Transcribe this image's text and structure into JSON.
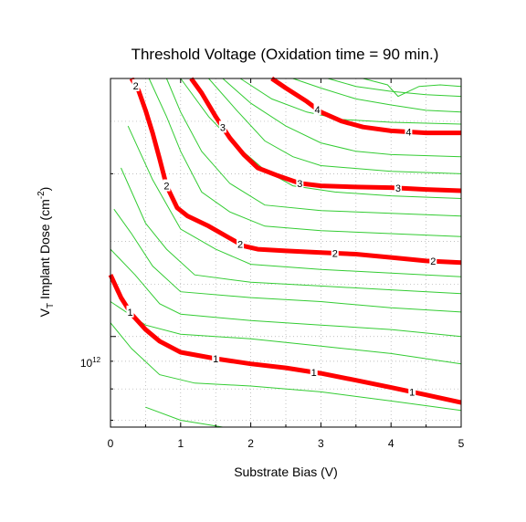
{
  "chart_data": {
    "type": "line",
    "subtype": "contour",
    "title": "Threshold Voltage (Oxidation time = 90 min.)",
    "xlabel": "Substrate Bias (V)",
    "ylabel": {
      "prefix": "V",
      "subscript": "T",
      "middle": " Implant Dose (cm",
      "superscript": "-2",
      "suffix": ")"
    },
    "xlim": [
      0,
      5
    ],
    "x_ticks": [
      "0",
      "1",
      "2",
      "3",
      "4",
      "5"
    ],
    "y_scale": "log",
    "ylim": [
      680000000000.0,
      3000000000000.0
    ],
    "y_tick_label": {
      "base": "10",
      "exponent": "12",
      "value": 1000000000000.0
    },
    "grid": true,
    "colors": {
      "major_contour": "#ff0000",
      "minor_contour": "#33cc33",
      "grid": "#aaaaaa",
      "frame": "#000000"
    },
    "major_contours": [
      {
        "level_label": "1",
        "points": [
          [
            0,
            1300000000000.0
          ],
          [
            0.15,
            1180000000000.0
          ],
          [
            0.3,
            1100000000000.0
          ],
          [
            0.5,
            1030000000000.0
          ],
          [
            0.7,
            980000000000.0
          ],
          [
            1.0,
            935000000000.0
          ],
          [
            1.5,
            910000000000.0
          ],
          [
            2.0,
            890000000000.0
          ],
          [
            2.5,
            875000000000.0
          ],
          [
            3.0,
            855000000000.0
          ],
          [
            3.5,
            830000000000.0
          ],
          [
            4.0,
            805000000000.0
          ],
          [
            4.5,
            780000000000.0
          ],
          [
            5.0,
            755000000000.0
          ]
        ],
        "label_x": [
          0.28,
          1.5,
          2.9,
          4.3
        ]
      },
      {
        "level_label": "2",
        "points": [
          [
            0.3,
            3000000000000.0
          ],
          [
            0.4,
            2850000000000.0
          ],
          [
            0.5,
            2620000000000.0
          ],
          [
            0.6,
            2380000000000.0
          ],
          [
            0.7,
            2130000000000.0
          ],
          [
            0.8,
            1900000000000.0
          ],
          [
            0.95,
            1730000000000.0
          ],
          [
            1.1,
            1670000000000.0
          ],
          [
            1.4,
            1600000000000.0
          ],
          [
            1.7,
            1520000000000.0
          ],
          [
            1.9,
            1470000000000.0
          ],
          [
            2.1,
            1450000000000.0
          ],
          [
            2.5,
            1440000000000.0
          ],
          [
            3.0,
            1430000000000.0
          ],
          [
            3.5,
            1420000000000.0
          ],
          [
            4.0,
            1400000000000.0
          ],
          [
            4.5,
            1380000000000.0
          ],
          [
            5.0,
            1370000000000.0
          ]
        ],
        "label_x": [
          0.36,
          0.8,
          1.85,
          3.2,
          4.6
        ]
      },
      {
        "level_label": "3",
        "points": [
          [
            1.15,
            3000000000000.0
          ],
          [
            1.3,
            2820000000000.0
          ],
          [
            1.5,
            2550000000000.0
          ],
          [
            1.7,
            2330000000000.0
          ],
          [
            1.9,
            2170000000000.0
          ],
          [
            2.1,
            2050000000000.0
          ],
          [
            2.4,
            1980000000000.0
          ],
          [
            2.7,
            1920000000000.0
          ],
          [
            3.0,
            1900000000000.0
          ],
          [
            3.5,
            1890000000000.0
          ],
          [
            4.0,
            1885000000000.0
          ],
          [
            4.5,
            1870000000000.0
          ],
          [
            5.0,
            1860000000000.0
          ]
        ],
        "label_x": [
          1.6,
          2.7,
          4.1
        ]
      },
      {
        "level_label": "4",
        "points": [
          [
            2.3,
            3000000000000.0
          ],
          [
            2.5,
            2880000000000.0
          ],
          [
            2.8,
            2720000000000.0
          ],
          [
            3.0,
            2600000000000.0
          ],
          [
            3.3,
            2500000000000.0
          ],
          [
            3.6,
            2440000000000.0
          ],
          [
            4.0,
            2400000000000.0
          ],
          [
            4.5,
            2380000000000.0
          ],
          [
            5.0,
            2380000000000.0
          ]
        ],
        "label_x": [
          2.95,
          4.25
        ]
      }
    ],
    "minor_contours": [
      {
        "points": [
          [
            0.5,
            740000000000.0
          ],
          [
            1.0,
            700000000000.0
          ],
          [
            1.6,
            680000000000.0
          ]
        ]
      },
      {
        "points": [
          [
            0,
            1060000000000.0
          ],
          [
            0.3,
            950000000000.0
          ],
          [
            0.7,
            850000000000.0
          ],
          [
            1.2,
            820000000000.0
          ],
          [
            2.0,
            810000000000.0
          ],
          [
            3.0,
            790000000000.0
          ],
          [
            4.0,
            760000000000.0
          ],
          [
            5.0,
            730000000000.0
          ]
        ]
      },
      {
        "points": [
          [
            0,
            1160000000000.0
          ],
          [
            0.5,
            1050000000000.0
          ],
          [
            1.0,
            1010000000000.0
          ],
          [
            2.0,
            990000000000.0
          ],
          [
            3.0,
            960000000000.0
          ],
          [
            4.0,
            930000000000.0
          ],
          [
            5.0,
            890000000000.0
          ]
        ]
      },
      {
        "points": [
          [
            0,
            1450000000000.0
          ],
          [
            0.35,
            1300000000000.0
          ],
          [
            0.7,
            1150000000000.0
          ],
          [
            1.0,
            1100000000000.0
          ],
          [
            2.0,
            1070000000000.0
          ],
          [
            3.0,
            1050000000000.0
          ],
          [
            4.0,
            1030000000000.0
          ],
          [
            5.0,
            1000000000000.0
          ]
        ]
      },
      {
        "points": [
          [
            0.05,
            1720000000000.0
          ],
          [
            0.3,
            1550000000000.0
          ],
          [
            0.6,
            1350000000000.0
          ],
          [
            1.0,
            1210000000000.0
          ],
          [
            2.0,
            1180000000000.0
          ],
          [
            3.0,
            1160000000000.0
          ],
          [
            4.0,
            1130000000000.0
          ],
          [
            5.0,
            1110000000000.0
          ]
        ]
      },
      {
        "points": [
          [
            0.15,
            2050000000000.0
          ],
          [
            0.5,
            1620000000000.0
          ],
          [
            0.8,
            1450000000000.0
          ],
          [
            1.2,
            1300000000000.0
          ],
          [
            2.0,
            1260000000000.0
          ],
          [
            3.0,
            1240000000000.0
          ],
          [
            4.0,
            1220000000000.0
          ],
          [
            5.0,
            1200000000000.0
          ]
        ]
      },
      {
        "points": [
          [
            0.25,
            2450000000000.0
          ],
          [
            0.6,
            1950000000000.0
          ],
          [
            1.0,
            1580000000000.0
          ],
          [
            1.5,
            1450000000000.0
          ],
          [
            2.0,
            1360000000000.0
          ],
          [
            3.0,
            1330000000000.0
          ],
          [
            4.0,
            1310000000000.0
          ],
          [
            5.0,
            1290000000000.0
          ]
        ]
      },
      {
        "points": [
          [
            0.55,
            3000000000000.0
          ],
          [
            0.8,
            2550000000000.0
          ],
          [
            1.0,
            2200000000000.0
          ],
          [
            1.3,
            1850000000000.0
          ],
          [
            1.7,
            1700000000000.0
          ],
          [
            2.2,
            1600000000000.0
          ],
          [
            3.0,
            1570000000000.0
          ],
          [
            4.0,
            1550000000000.0
          ],
          [
            5.0,
            1530000000000.0
          ]
        ]
      },
      {
        "points": [
          [
            0.8,
            3000000000000.0
          ],
          [
            1.0,
            2600000000000.0
          ],
          [
            1.3,
            2200000000000.0
          ],
          [
            1.7,
            1920000000000.0
          ],
          [
            2.2,
            1750000000000.0
          ],
          [
            3.0,
            1710000000000.0
          ],
          [
            4.0,
            1690000000000.0
          ],
          [
            5.0,
            1670000000000.0
          ]
        ]
      },
      {
        "points": [
          [
            1.0,
            3000000000000.0
          ],
          [
            1.4,
            2550000000000.0
          ],
          [
            1.8,
            2250000000000.0
          ],
          [
            2.2,
            2030000000000.0
          ],
          [
            2.6,
            1900000000000.0
          ],
          [
            3.2,
            1850000000000.0
          ],
          [
            4.0,
            1820000000000.0
          ],
          [
            5.0,
            1800000000000.0
          ]
        ]
      },
      {
        "points": [
          [
            1.4,
            3000000000000.0
          ],
          [
            1.8,
            2620000000000.0
          ],
          [
            2.2,
            2300000000000.0
          ],
          [
            2.6,
            2150000000000.0
          ],
          [
            3.0,
            2070000000000.0
          ],
          [
            4.0,
            2020000000000.0
          ],
          [
            5.0,
            2000000000000.0
          ]
        ]
      },
      {
        "points": [
          [
            1.6,
            3000000000000.0
          ],
          [
            2.0,
            2700000000000.0
          ],
          [
            2.5,
            2450000000000.0
          ],
          [
            3.0,
            2280000000000.0
          ],
          [
            3.5,
            2200000000000.0
          ],
          [
            4.0,
            2170000000000.0
          ],
          [
            5.0,
            2150000000000.0
          ]
        ]
      },
      {
        "points": [
          [
            1.85,
            3000000000000.0
          ],
          [
            2.3,
            2750000000000.0
          ],
          [
            2.8,
            2600000000000.0
          ],
          [
            3.3,
            2520000000000.0
          ],
          [
            4.0,
            2490000000000.0
          ],
          [
            5.0,
            2470000000000.0
          ]
        ]
      },
      {
        "points": [
          [
            2.6,
            3000000000000.0
          ],
          [
            3.0,
            2880000000000.0
          ],
          [
            3.5,
            2750000000000.0
          ],
          [
            4.0,
            2680000000000.0
          ],
          [
            4.5,
            2620000000000.0
          ],
          [
            5.0,
            2600000000000.0
          ]
        ]
      },
      {
        "points": [
          [
            3.1,
            3000000000000.0
          ],
          [
            3.5,
            2900000000000.0
          ],
          [
            4.0,
            2840000000000.0
          ],
          [
            4.5,
            2800000000000.0
          ],
          [
            5.0,
            2780000000000.0
          ]
        ]
      },
      {
        "points": [
          [
            3.6,
            3000000000000.0
          ],
          [
            3.95,
            2920000000000.0
          ],
          [
            4.1,
            2780000000000.0
          ],
          [
            4.4,
            2900000000000.0
          ],
          [
            4.7,
            2920000000000.0
          ],
          [
            5.0,
            2900000000000.0
          ]
        ]
      }
    ]
  }
}
